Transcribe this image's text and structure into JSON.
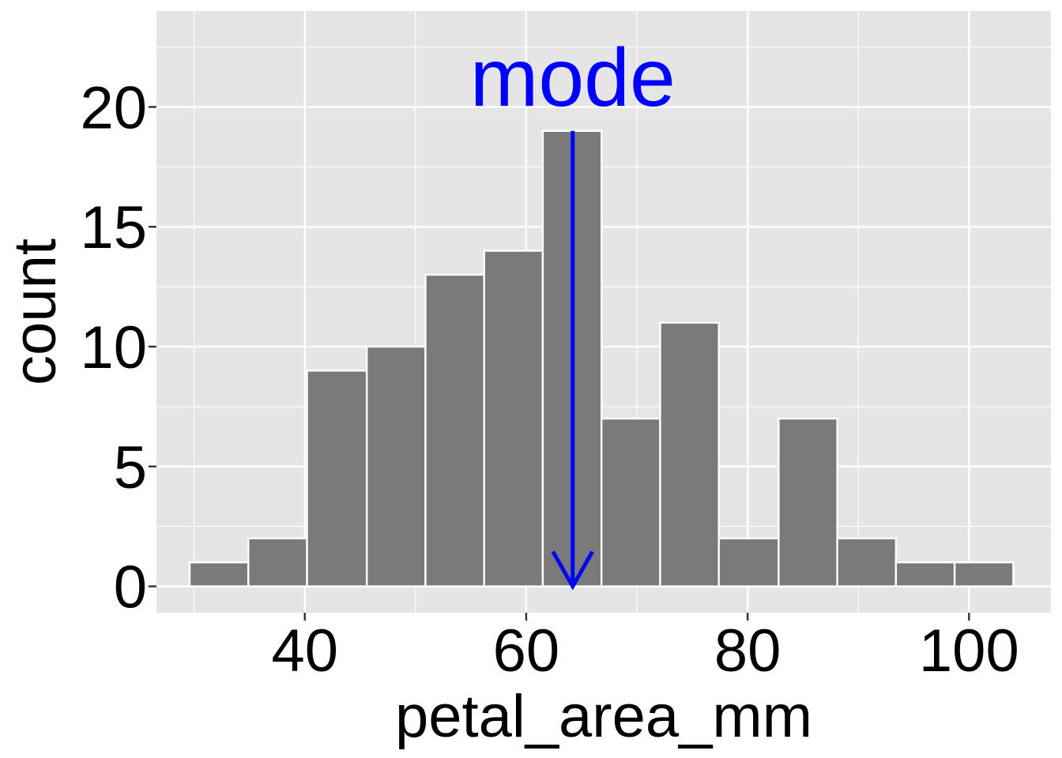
{
  "chart_data": {
    "type": "bar",
    "subtype": "histogram",
    "xlabel": "petal_area_mm",
    "ylabel": "count",
    "xlim": [
      26.6,
      107.4
    ],
    "ylim": [
      -1.1,
      24.0
    ],
    "x_ticks": [
      40,
      60,
      80,
      100
    ],
    "y_ticks": [
      0,
      5,
      10,
      15,
      20
    ],
    "bins": [
      {
        "x0": 29.6,
        "x1": 34.9,
        "count": 1
      },
      {
        "x0": 34.9,
        "x1": 40.2,
        "count": 2
      },
      {
        "x0": 40.2,
        "x1": 45.6,
        "count": 9
      },
      {
        "x0": 45.6,
        "x1": 50.9,
        "count": 10
      },
      {
        "x0": 50.9,
        "x1": 56.2,
        "count": 13
      },
      {
        "x0": 56.2,
        "x1": 61.5,
        "count": 14
      },
      {
        "x0": 61.5,
        "x1": 66.8,
        "count": 19
      },
      {
        "x0": 66.8,
        "x1": 72.1,
        "count": 7
      },
      {
        "x0": 72.1,
        "x1": 77.4,
        "count": 11
      },
      {
        "x0": 77.4,
        "x1": 82.8,
        "count": 2
      },
      {
        "x0": 82.8,
        "x1": 88.1,
        "count": 7
      },
      {
        "x0": 88.1,
        "x1": 93.4,
        "count": 2
      },
      {
        "x0": 93.4,
        "x1": 98.7,
        "count": 1
      },
      {
        "x0": 98.7,
        "x1": 104.0,
        "count": 1
      }
    ],
    "annotation": {
      "text": "mode",
      "x": 64.2,
      "y_from": 19,
      "y_to": 0,
      "color": "#0000ff"
    },
    "colors": {
      "panel": "#e5e5e5",
      "grid": "#ffffff",
      "bar_fill": "#7a7a7a",
      "bar_stroke": "#ffffff"
    },
    "grid": true,
    "legend": "none"
  }
}
